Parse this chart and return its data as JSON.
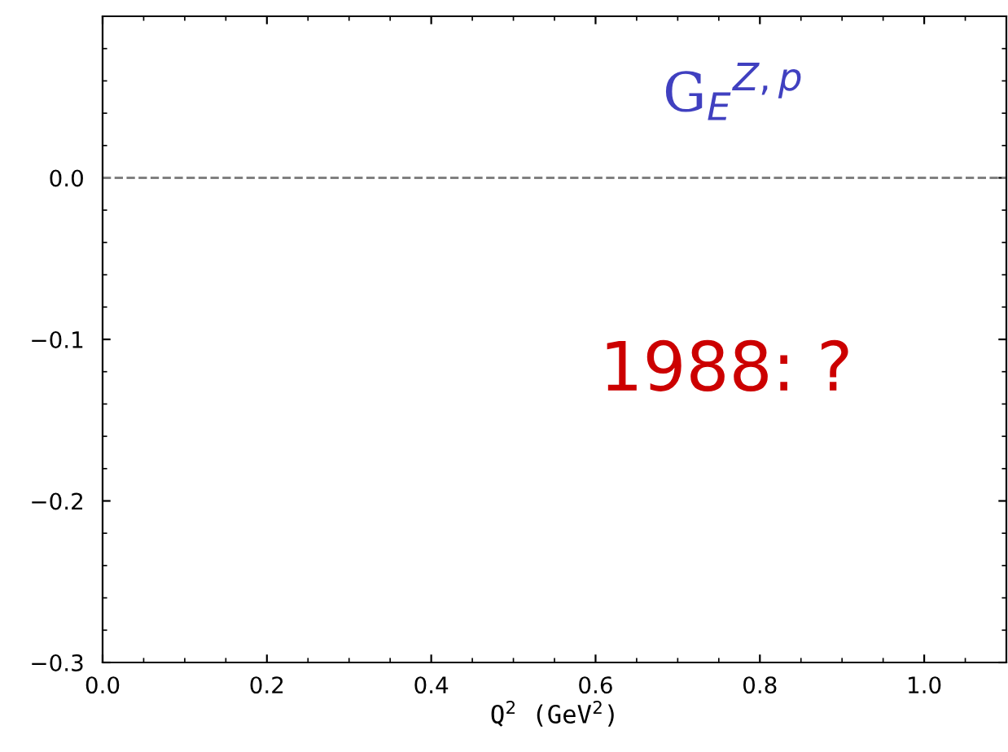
{
  "chart_data": {
    "type": "line",
    "xlabel": "Q$^{2}$ (GeV$^{2}$)",
    "xlim": [
      0,
      1.1
    ],
    "ylim": [
      -0.3,
      0.1
    ],
    "xticks": [
      {
        "value": 0,
        "label": "0.0"
      },
      0.2,
      0.4,
      0.6,
      0.8,
      {
        "value": 1,
        "label": "1.0"
      }
    ],
    "yticks": [
      {
        "value": -0.3,
        "label": "−0.3"
      },
      {
        "value": -0.2,
        "label": "−0.2"
      },
      {
        "value": -0.1,
        "label": "−0.1"
      },
      {
        "value": 0,
        "label": "0.0"
      }
    ],
    "ref_lines": [
      {
        "axis": "y",
        "value": 0,
        "color": "#808080",
        "line_style": "dashed"
      }
    ],
    "annotations": [
      "G$_{E}$$^{Z,p}$",
      "1988: ?"
    ],
    "grid": false,
    "legend": false
  }
}
